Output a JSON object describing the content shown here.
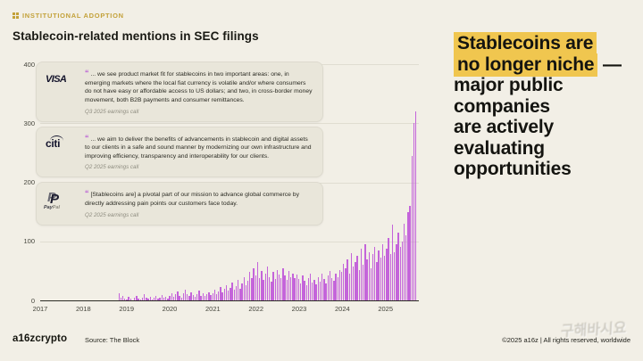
{
  "kicker": {
    "label": "INSTITUTIONAL ADOPTION",
    "icon": "grid-icon",
    "color": "#c3a139"
  },
  "title": "Stablecoin-related mentions in SEC filings",
  "headline": {
    "highlight_color": "#f0c64f",
    "lines": [
      {
        "text": "Stablecoins are",
        "highlight": true,
        "suffix": ""
      },
      {
        "text": "no longer niche",
        "highlight": true,
        "suffix": " —"
      },
      {
        "text": "major public",
        "highlight": false,
        "suffix": ""
      },
      {
        "text": "companies",
        "highlight": false,
        "suffix": ""
      },
      {
        "text": "are actively",
        "highlight": false,
        "suffix": ""
      },
      {
        "text": "evaluating",
        "highlight": false,
        "suffix": ""
      },
      {
        "text": "opportunities",
        "highlight": false,
        "suffix": ""
      }
    ]
  },
  "quotes": [
    {
      "company": "Visa",
      "logo": "visa-logo",
      "logo_text": "VISA",
      "text": "... we see product market fit for stablecoins in two important areas: one, in emerging markets where the local fiat currency is volatile and/or where consumers do not have easy or affordable access to US dollars; and two, in cross-border money movement, both B2B payments and consumer remittances.",
      "attribution": "Q3 2025 earnings call"
    },
    {
      "company": "Citi",
      "logo": "citi-logo",
      "logo_text": "citi",
      "text": "... we aim to deliver the benefits of advancements in stablecoin and digital assets to our clients in a safe and sound manner by modernizing our own infrastructure and improving efficiency, transparency and interoperability for our clients.",
      "attribution": "Q2 2025 earnings call"
    },
    {
      "company": "PayPal",
      "logo": "paypal-logo",
      "logo_text": "PayPal",
      "text": "[Stablecoins are] a pivotal part of our mission to advance global commerce by directly addressing pain points our customers face today.",
      "attribution": "Q2 2025 earnings call"
    }
  ],
  "chart_data": {
    "type": "bar",
    "title": "Stablecoin-related mentions in SEC filings",
    "xlabel": "",
    "ylabel": "",
    "x_tick_labels": [
      "2017",
      "2018",
      "2019",
      "2020",
      "2021",
      "2022",
      "2023",
      "2024",
      "2025"
    ],
    "bars_per_year": 22,
    "y_ticks": [
      0,
      100,
      200,
      300,
      400
    ],
    "ylim": [
      0,
      400
    ],
    "grid": true,
    "legend": false,
    "bar_color": "#c464da",
    "values": [
      0,
      0,
      0,
      0,
      0,
      0,
      0,
      0,
      0,
      0,
      0,
      0,
      0,
      0,
      0,
      0,
      0,
      0,
      0,
      0,
      0,
      0,
      0,
      0,
      0,
      0,
      0,
      0,
      0,
      0,
      0,
      0,
      0,
      0,
      0,
      0,
      0,
      0,
      0,
      0,
      12,
      5,
      8,
      3,
      2,
      6,
      3,
      0,
      4,
      8,
      3,
      2,
      5,
      10,
      4,
      3,
      6,
      2,
      4,
      7,
      3,
      5,
      9,
      4,
      6,
      3,
      8,
      12,
      6,
      10,
      15,
      8,
      5,
      12,
      18,
      10,
      7,
      14,
      9,
      6,
      11,
      16,
      8,
      12,
      7,
      10,
      13,
      9,
      12,
      18,
      10,
      15,
      22,
      14,
      19,
      26,
      16,
      21,
      30,
      18,
      24,
      35,
      20,
      28,
      40,
      25,
      33,
      48,
      38,
      55,
      42,
      65,
      38,
      50,
      35,
      45,
      58,
      40,
      32,
      48,
      36,
      52,
      44,
      38,
      55,
      42,
      35,
      50,
      40,
      46,
      38,
      44,
      36,
      28,
      42,
      33,
      25,
      38,
      45,
      30,
      35,
      27,
      40,
      32,
      46,
      36,
      29,
      42,
      50,
      38,
      33,
      45,
      40,
      52,
      48,
      62,
      55,
      70,
      45,
      80,
      58,
      65,
      75,
      52,
      88,
      60,
      95,
      70,
      82,
      55,
      78,
      90,
      65,
      85,
      72,
      95,
      75,
      88,
      105,
      78,
      128,
      82,
      95,
      115,
      90,
      100,
      130,
      110,
      150,
      160,
      245,
      300,
      320
    ]
  },
  "footer": {
    "logo": "a16zcrypto",
    "source": "Source: The Block",
    "copyright": "©2025 a16z | All rights reserved, worldwide"
  },
  "watermark": "구해바시요"
}
